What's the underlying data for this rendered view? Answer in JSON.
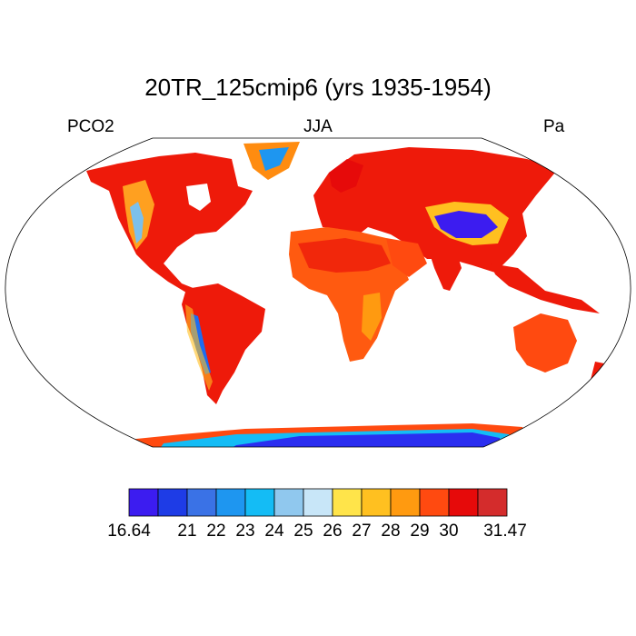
{
  "title": "20TR_125cmip6 (yrs 1935-1954)",
  "left_label": "PCO2",
  "center_label": "JJA",
  "right_label": "Pa",
  "colorbar": {
    "min_label": "16.64",
    "max_label": "31.47",
    "ticks": [
      "21",
      "22",
      "23",
      "24",
      "25",
      "26",
      "27",
      "28",
      "29",
      "30"
    ],
    "colors": [
      "#3c1cf0",
      "#1e3ce6",
      "#3a72e6",
      "#1e96f0",
      "#14bcf5",
      "#90c8ee",
      "#c8e6f8",
      "#ffe44a",
      "#ffc020",
      "#ff9a10",
      "#ff4a10",
      "#e60a0a",
      "#d42c2c"
    ]
  }
}
